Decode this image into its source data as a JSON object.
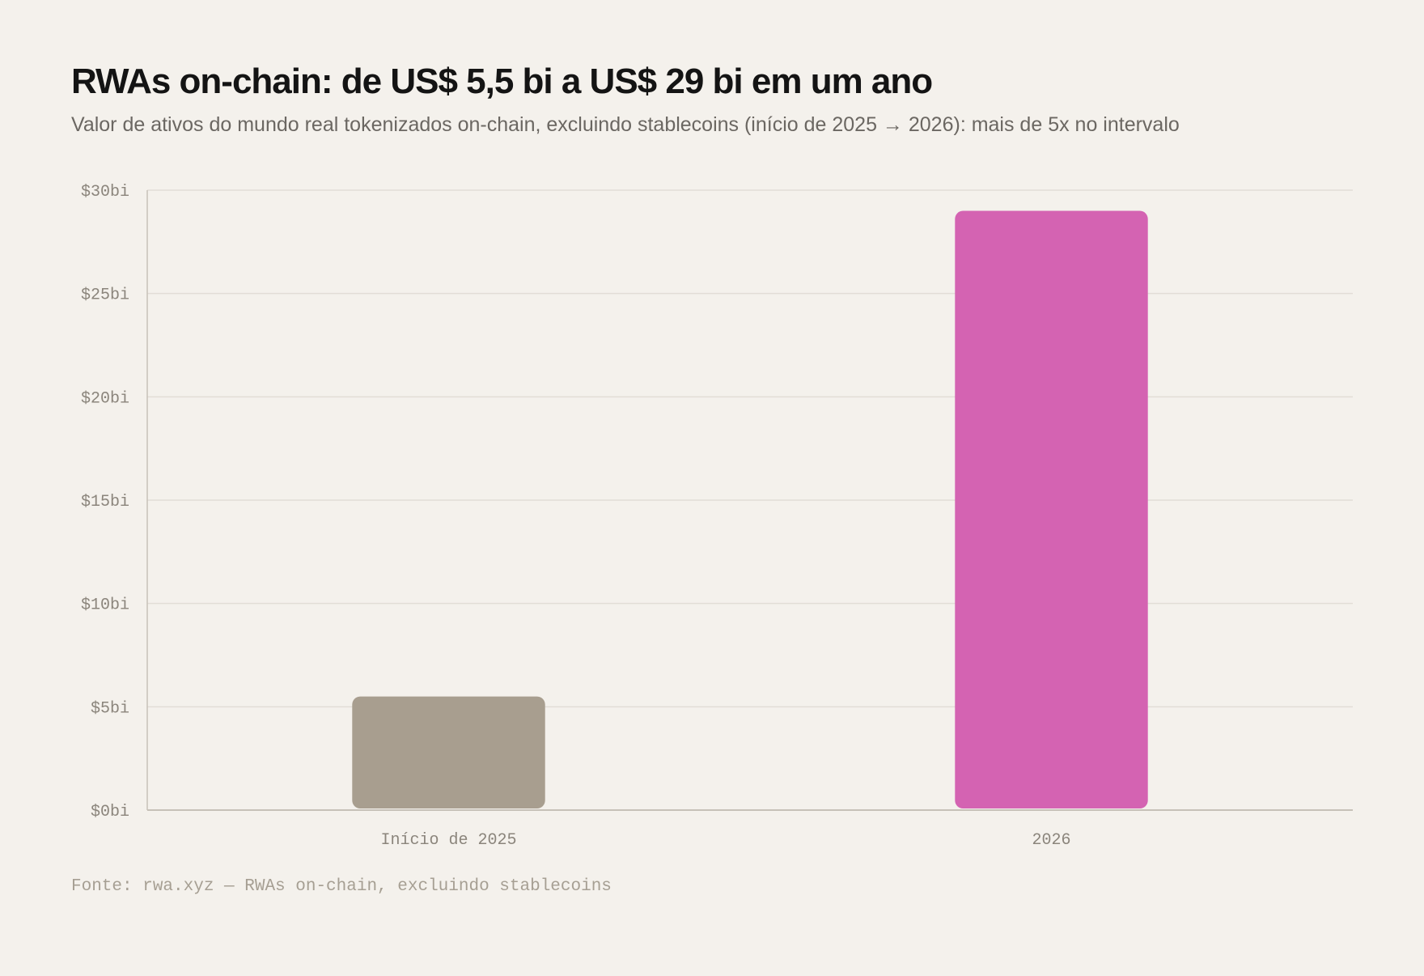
{
  "title": "RWAs on-chain: de US$ 5,5 bi a US$ 29 bi em um ano",
  "subtitle": "Valor de ativos do mundo real tokenizados on-chain, excluindo stablecoins (início de 2025 → 2026): mais de 5x no intervalo",
  "source": "Fonte: rwa.xyz — RWAs on-chain, excluindo stablecoins",
  "colors": {
    "background": "#f4f1ec",
    "bar_2025": "#a89e8f",
    "bar_2026": "#d463b2",
    "grid": "#e2ddd6",
    "axis": "#c7c1b8",
    "tick_text": "#8b857c"
  },
  "chart_data": {
    "type": "bar",
    "categories": [
      "Início de 2025",
      "2026"
    ],
    "values": [
      5.5,
      29
    ],
    "bar_colors": [
      "#a89e8f",
      "#d463b2"
    ],
    "unit": "US$ bi",
    "ylim": [
      0,
      30
    ],
    "yticks": [
      0,
      5,
      10,
      15,
      20,
      25,
      30
    ],
    "ytick_labels": [
      "$0bi",
      "$5bi",
      "$10bi",
      "$15bi",
      "$20bi",
      "$25bi",
      "$30bi"
    ],
    "grid": true,
    "legend": "none"
  }
}
